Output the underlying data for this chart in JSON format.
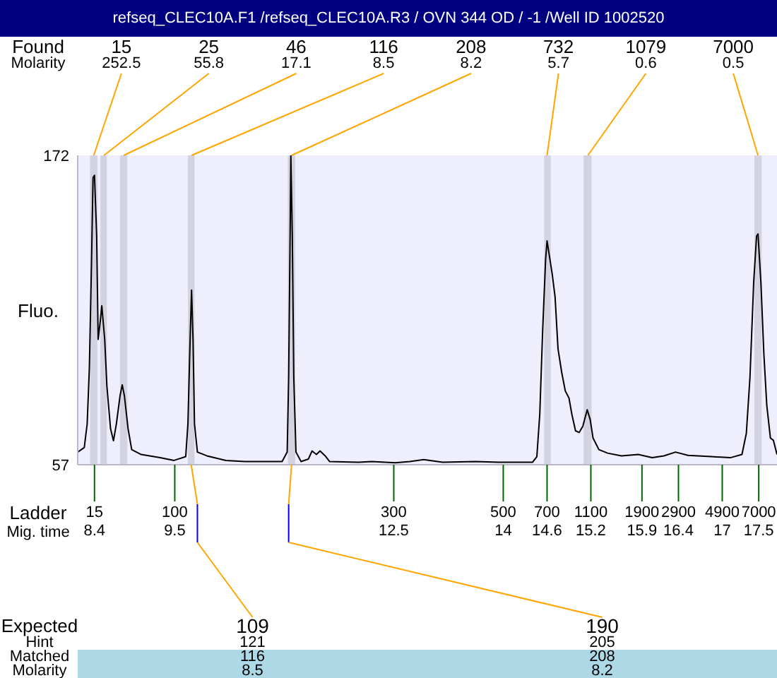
{
  "chart_data": {
    "type": "line",
    "title": "refseq_CLEC10A.F1 /refseq_CLEC10A.R3 / OVN 344 OD / -1 /Well ID 1002520",
    "xlabel": "Mig. time",
    "ylabel": "Fluo.",
    "x": [
      8.17,
      8.26,
      8.3,
      8.33,
      8.36,
      8.38,
      8.4,
      8.43,
      8.45,
      8.48,
      8.5,
      8.54,
      8.57,
      8.62,
      8.66,
      8.7,
      8.75,
      8.78,
      8.81,
      8.86,
      8.91,
      9.04,
      9.3,
      9.49,
      9.65,
      9.68,
      9.71,
      9.73,
      9.75,
      9.77,
      9.81,
      9.94,
      10.2,
      10.46,
      10.72,
      10.97,
      11.04,
      11.06,
      11.08,
      11.09,
      11.11,
      11.13,
      11.16,
      11.23,
      11.33,
      11.38,
      11.44,
      11.49,
      11.56,
      11.62,
      12.01,
      12.2,
      12.52,
      12.72,
      12.91,
      13.17,
      13.62,
      13.94,
      14.4,
      14.46,
      14.5,
      14.54,
      14.58,
      14.6,
      14.62,
      14.67,
      14.71,
      14.75,
      14.8,
      14.85,
      14.9,
      14.94,
      14.99,
      15.04,
      15.09,
      15.15,
      15.19,
      15.23,
      15.31,
      15.43,
      15.62,
      15.85,
      16.04,
      16.2,
      16.36,
      16.53,
      16.85,
      17.11,
      17.27,
      17.33,
      17.38,
      17.43,
      17.47,
      17.49,
      17.53,
      17.57,
      17.61,
      17.66,
      17.7,
      17.75
    ],
    "values": [
      61.7,
      63.4,
      72.2,
      93.1,
      133.3,
      163.7,
      164.6,
      142,
      103.6,
      110.5,
      116.1,
      103.6,
      86.2,
      70.4,
      65.9,
      72.2,
      82.6,
      86.7,
      82.6,
      70.4,
      62.6,
      60.8,
      59.6,
      58.6,
      60,
      72.2,
      103.6,
      121.9,
      103.6,
      72.2,
      61.7,
      60.3,
      58.6,
      58.2,
      58.2,
      58.2,
      61.7,
      89.6,
      142,
      172,
      142,
      89.6,
      61.7,
      58.2,
      59.1,
      62.1,
      60.8,
      62.1,
      60.3,
      58.2,
      57.9,
      58.2,
      57.7,
      58.2,
      58.9,
      57.9,
      58.2,
      57.9,
      57.9,
      60,
      75.7,
      107.1,
      133.3,
      140.2,
      136.7,
      128,
      119.3,
      100.1,
      91.4,
      84.4,
      81.8,
      75.7,
      69.6,
      69,
      71.3,
      77.4,
      73.9,
      66.9,
      62.6,
      61.3,
      60.3,
      60.8,
      59.6,
      60.3,
      61.7,
      60.5,
      60,
      59.6,
      60.8,
      68.7,
      89.6,
      124.5,
      142,
      142.8,
      124.5,
      98.3,
      79.1,
      66.9,
      66.1,
      60.8
    ],
    "color": "#000000",
    "xlim": [
      8.17,
      17.75
    ],
    "xticks": [
      8.4,
      9.5,
      12.5,
      14,
      14.6,
      15.2,
      15.9,
      16.4,
      17,
      17.5
    ],
    "ylim": [
      57,
      172
    ],
    "yticks": [
      57,
      172
    ],
    "bands": [
      {
        "axis": "x",
        "from": 8.34,
        "to": 8.44,
        "label": "15",
        "color": "#d2d2e0"
      },
      {
        "axis": "x",
        "from": 8.48,
        "to": 8.57,
        "label": "25",
        "color": "#d2d2e0"
      },
      {
        "axis": "x",
        "from": 8.75,
        "to": 8.85,
        "label": "46",
        "color": "#d2d2e0"
      },
      {
        "axis": "x",
        "from": 9.68,
        "to": 9.77,
        "label": "116",
        "color": "#d2d2e0"
      },
      {
        "axis": "x",
        "from": 11.05,
        "to": 11.15,
        "label": "208",
        "color": "#d2d2e0"
      },
      {
        "axis": "x",
        "from": 14.56,
        "to": 14.65,
        "label": "732",
        "color": "#d2d2e0"
      },
      {
        "axis": "x",
        "from": 15.1,
        "to": 15.21,
        "label": "1079",
        "color": "#d2d2e0"
      },
      {
        "axis": "x",
        "from": 17.44,
        "to": 17.54,
        "label": "7000",
        "color": "#d2d2e0"
      }
    ],
    "annotations": [
      "Found",
      "Molarity",
      {
        "text": "252.5",
        "x": 8.39,
        "y": 172
      },
      {
        "text": "55.8",
        "x": 8.53,
        "y": 172
      },
      {
        "text": "17.1",
        "x": 8.8,
        "y": 172
      },
      {
        "text": "8.5",
        "x": 9.73,
        "y": 172
      },
      {
        "text": "8.2",
        "x": 11.1,
        "y": 172
      },
      {
        "text": "5.7",
        "x": 14.6,
        "y": 172
      },
      {
        "text": "0.6",
        "x": 15.16,
        "y": 172
      },
      {
        "text": "0.5",
        "x": 17.49,
        "y": 172
      },
      "Ladder",
      "15",
      "100",
      "300",
      "500",
      "700",
      "1100",
      "1900",
      "2900",
      "4900",
      "7000",
      "Expected",
      "Hint",
      "Matched",
      "Molarity",
      {
        "text": "109",
        "x": 9.81
      },
      {
        "text": "190",
        "x": 11.06
      },
      "121",
      "205",
      "116",
      "208",
      "8.5",
      "8.2"
    ]
  }
}
